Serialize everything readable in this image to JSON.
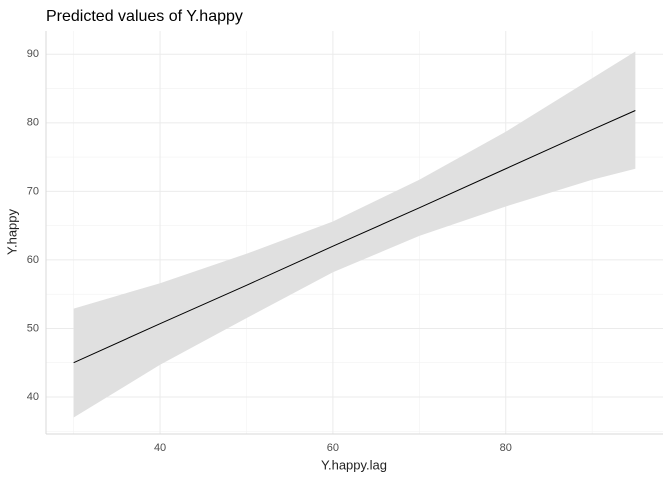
{
  "chart_data": {
    "type": "line",
    "title": "Predicted values of Y.happy",
    "x_label": "Y.happy.lag",
    "y_label": "Y.happy",
    "x": [
      30,
      40,
      50,
      60,
      70,
      80,
      90,
      95
    ],
    "series": [
      {
        "color": "#000000",
        "band_color": "#e0e0e0",
        "values": [
          45,
          50.7,
          56.3,
          62,
          67.6,
          73.3,
          79,
          81.8
        ],
        "lower": [
          37,
          44.7,
          51.5,
          58.2,
          63.5,
          67.8,
          71.7,
          73.3
        ],
        "upper": [
          52.9,
          56.6,
          60.9,
          65.6,
          71.7,
          78.7,
          86.5,
          90.4
        ]
      }
    ],
    "xlim": [
      26.8,
      98.2
    ],
    "xticks": [
      40,
      60,
      80
    ],
    "ylim": [
      34.6,
      93.4
    ],
    "yticks": [
      40,
      50,
      60,
      70,
      80,
      90
    ],
    "grid": true
  }
}
